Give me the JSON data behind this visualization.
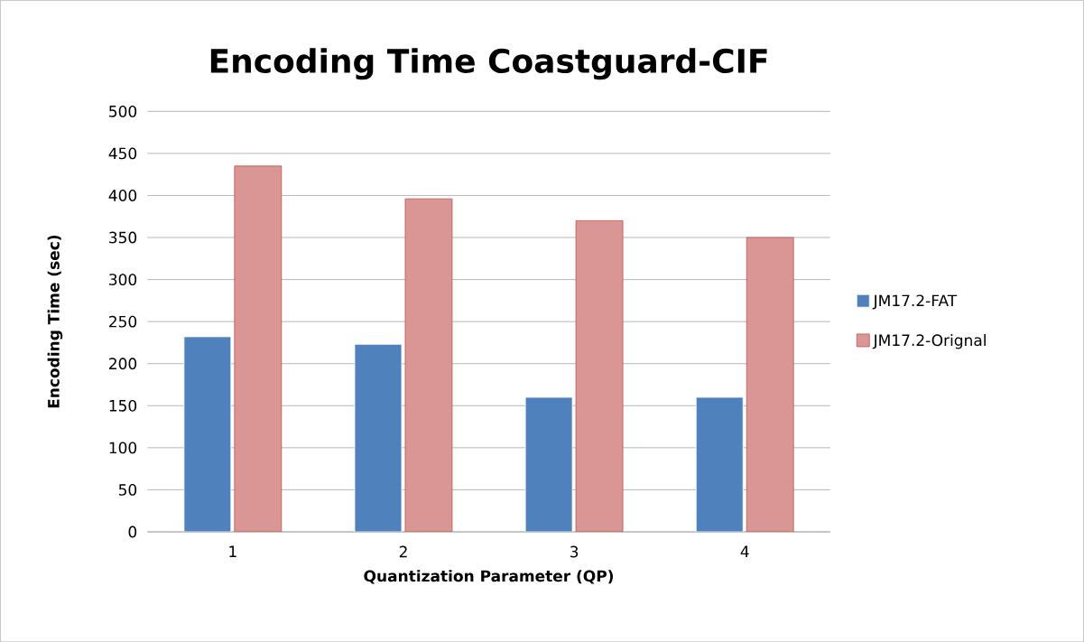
{
  "chart_data": {
    "type": "bar",
    "title": "Encoding Time Coastguard-CIF",
    "xlabel": "Quantization Parameter (QP)",
    "ylabel": "Encoding Time (sec)",
    "categories": [
      "1",
      "2",
      "3",
      "4"
    ],
    "series": [
      {
        "name": "JM17.2-FAT",
        "color": "#4f81bd",
        "values": [
          232,
          223,
          160,
          160
        ]
      },
      {
        "name": "JM17.2-Orignal",
        "color": "#c0504d",
        "values": [
          435,
          396,
          370,
          350
        ]
      }
    ],
    "ylim": [
      0,
      500
    ],
    "yticks": [
      0,
      50,
      100,
      150,
      200,
      250,
      300,
      350,
      400,
      450,
      500
    ],
    "grid": "y",
    "legend": "right"
  }
}
